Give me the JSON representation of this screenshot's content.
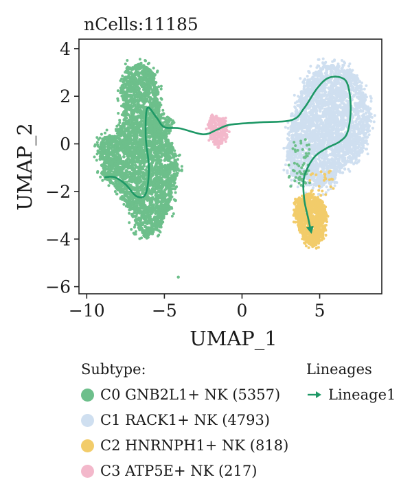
{
  "chart_data": {
    "type": "scatter",
    "title": "nCells:11185",
    "xlabel": "UMAP_1",
    "ylabel": "UMAP_2",
    "xlim": [
      -10.5,
      9.0
    ],
    "ylim": [
      -6.3,
      4.4
    ],
    "xticks": [
      -10,
      -5,
      0,
      5
    ],
    "yticks": [
      4,
      2,
      0,
      -2,
      -4,
      -6
    ],
    "xtick_labels": [
      "−10",
      "−5",
      "0",
      "5"
    ],
    "ytick_labels": [
      "4",
      "2",
      "0",
      "−2",
      "−4",
      "−6"
    ],
    "legend_title": "Subtype:",
    "series": [
      {
        "name": "C0 GNB2L1+ NK (5357)",
        "color": "#6dbf8b",
        "center": [
          -6.0,
          0.1
        ],
        "count": 5357
      },
      {
        "name": "C1 RACK1+ NK (4793)",
        "color": "#cfdff0",
        "center": [
          5.8,
          1.0
        ],
        "count": 4793
      },
      {
        "name": "C2 HNRNPH1+ NK (818)",
        "color": "#f2cc6a",
        "center": [
          4.6,
          -3.3
        ],
        "count": 818
      },
      {
        "name": "C3 ATP5E+ NK (217)",
        "color": "#f3b8cb",
        "center": [
          -1.4,
          0.6
        ],
        "count": 217
      }
    ],
    "lineages_title": "Lineages",
    "lineages": [
      {
        "name": "Lineage1",
        "color": "#1e9866",
        "points": [
          [
            -8.8,
            -1.4
          ],
          [
            -8.2,
            -1.4
          ],
          [
            -7.5,
            -1.7
          ],
          [
            -6.8,
            -2.2
          ],
          [
            -6.2,
            -2.1
          ],
          [
            -6.0,
            -1.0
          ],
          [
            -6.2,
            0.3
          ],
          [
            -6.1,
            1.5
          ],
          [
            -5.5,
            1.1
          ],
          [
            -5.0,
            0.7
          ],
          [
            -4.0,
            0.65
          ],
          [
            -2.5,
            0.4
          ],
          [
            -1.6,
            0.6
          ],
          [
            -0.8,
            0.8
          ],
          [
            1.0,
            0.9
          ],
          [
            3.2,
            1.0
          ],
          [
            4.0,
            1.5
          ],
          [
            4.8,
            2.3
          ],
          [
            5.5,
            2.75
          ],
          [
            6.3,
            2.8
          ],
          [
            6.8,
            2.5
          ],
          [
            7.0,
            1.5
          ],
          [
            6.8,
            0.5
          ],
          [
            6.3,
            0.1
          ],
          [
            5.4,
            -0.2
          ],
          [
            4.6,
            -0.6
          ],
          [
            4.0,
            -1.4
          ],
          [
            4.0,
            -2.3
          ],
          [
            4.25,
            -3.1
          ],
          [
            4.45,
            -3.7
          ]
        ]
      }
    ]
  }
}
